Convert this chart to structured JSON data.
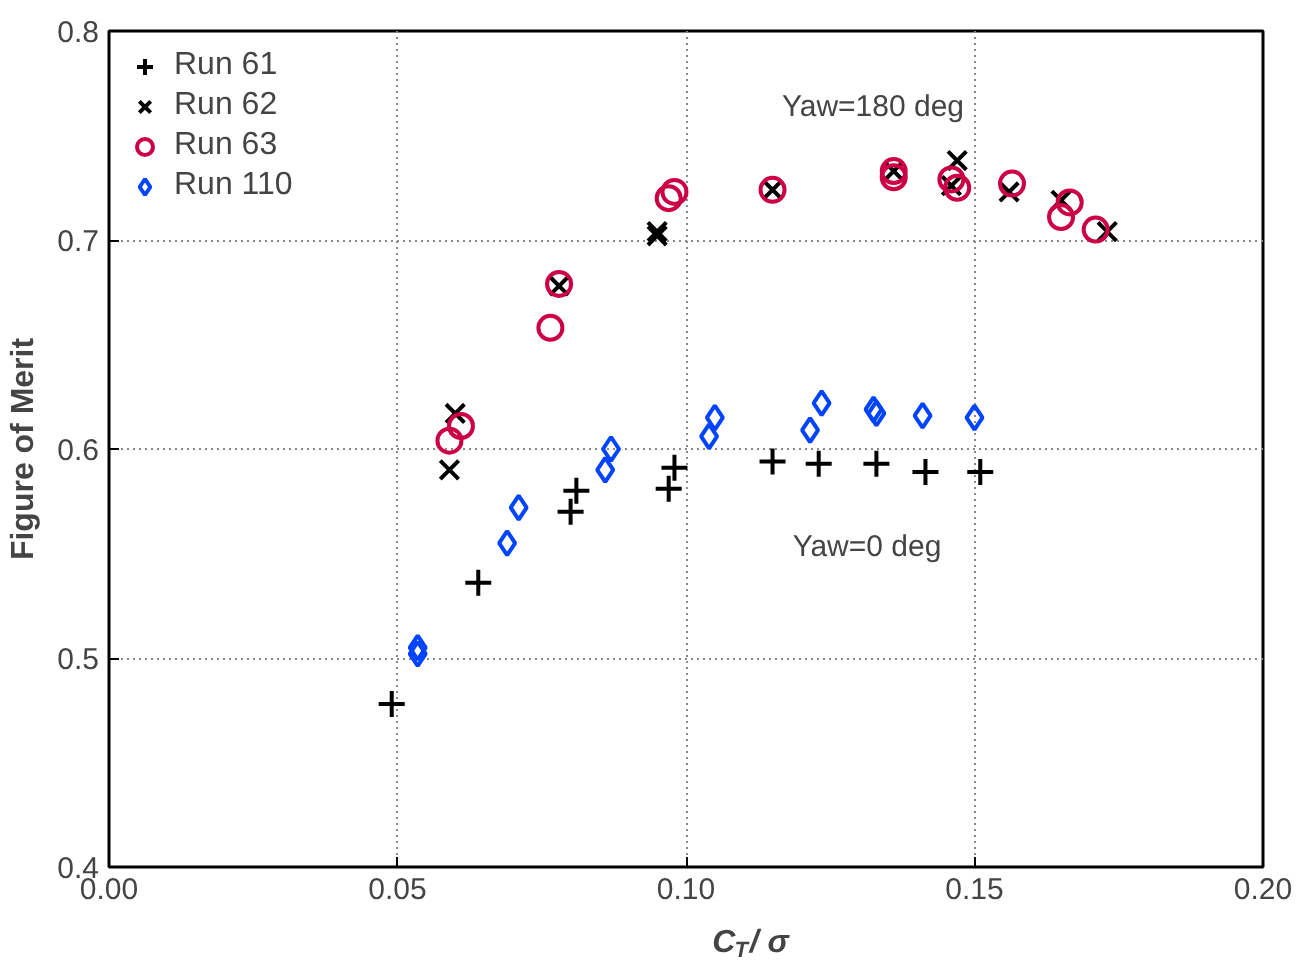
{
  "chart_data": {
    "type": "scatter",
    "xlabel": "C$_{T}$/ σ",
    "ylabel": "Figure of Merit",
    "xlim": [
      0.0,
      0.2
    ],
    "ylim": [
      0.4,
      0.8
    ],
    "xticks": [
      {
        "value": 0.0,
        "label": "0.00"
      },
      {
        "value": 0.05,
        "label": "0.05"
      },
      {
        "value": 0.1,
        "label": "0.10"
      },
      {
        "value": 0.15,
        "label": "0.15"
      },
      {
        "value": 0.2,
        "label": "0.20"
      }
    ],
    "yticks": [
      0.4,
      0.5,
      0.6,
      0.7,
      0.8
    ],
    "grid": true,
    "legend": "top left",
    "annotations": [
      "Yaw=180 deg",
      "Yaw=0 deg"
    ],
    "series": [
      {
        "name": "Run 61",
        "color": "#000000",
        "marker": "cross",
        "x": [
          0.049,
          0.064,
          0.081,
          0.08,
          0.098,
          0.097,
          0.115,
          0.123,
          0.133,
          0.1415,
          0.151
        ],
        "values": [
          0.478,
          0.536,
          0.58,
          0.57,
          0.591,
          0.581,
          0.594,
          0.593,
          0.593,
          0.589,
          0.589
        ]
      },
      {
        "name": "Run 62",
        "color": "#000000",
        "marker": "x",
        "x": [
          0.06,
          0.059,
          0.078,
          0.095,
          0.095,
          0.115,
          0.136,
          0.147,
          0.146,
          0.156,
          0.165,
          0.173
        ],
        "values": [
          0.617,
          0.59,
          0.678,
          0.704,
          0.702,
          0.724,
          0.733,
          0.738,
          0.726,
          0.723,
          0.719,
          0.704
        ]
      },
      {
        "name": "Run 63",
        "color": "#cc0044",
        "marker": "circle",
        "x": [
          0.061,
          0.059,
          0.078,
          0.0765,
          0.098,
          0.097,
          0.115,
          0.136,
          0.136,
          0.146,
          0.147,
          0.1565,
          0.1665,
          0.165,
          0.171
        ],
        "values": [
          0.611,
          0.604,
          0.679,
          0.658,
          0.723,
          0.72,
          0.724,
          0.733,
          0.73,
          0.729,
          0.725,
          0.727,
          0.718,
          0.711,
          0.705
        ]
      },
      {
        "name": "Run 110",
        "color": "#0044ff",
        "marker": "diamond",
        "x": [
          0.0535,
          0.0535,
          0.069,
          0.071,
          0.086,
          0.087,
          0.104,
          0.105,
          0.1215,
          0.1235,
          0.1325,
          0.133,
          0.141,
          0.15
        ],
        "values": [
          0.505,
          0.502,
          0.555,
          0.572,
          0.59,
          0.6,
          0.606,
          0.615,
          0.609,
          0.622,
          0.619,
          0.617,
          0.616,
          0.615
        ]
      }
    ]
  }
}
